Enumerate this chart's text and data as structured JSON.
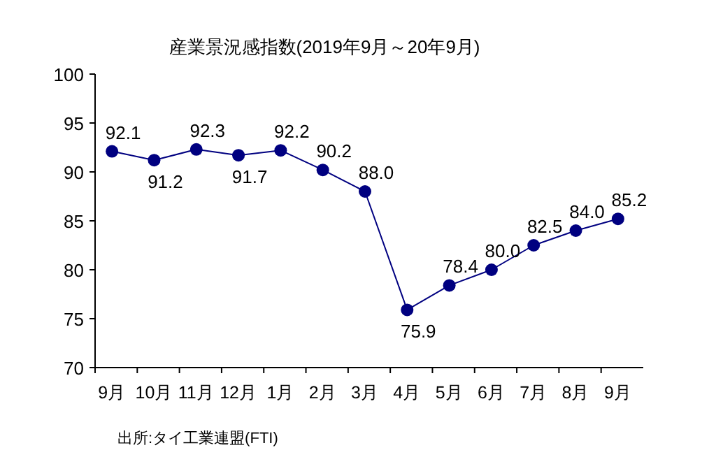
{
  "chart_data": {
    "type": "line",
    "title": "産業景況感指数(2019年9月～20年9月)",
    "categories": [
      "9月",
      "10月",
      "11月",
      "12月",
      "1月",
      "2月",
      "3月",
      "4月",
      "5月",
      "6月",
      "7月",
      "8月",
      "9月"
    ],
    "values": [
      92.1,
      91.2,
      92.3,
      91.7,
      92.2,
      90.2,
      88.0,
      75.9,
      78.4,
      80.0,
      82.5,
      84.0,
      85.2
    ],
    "value_labels": [
      "92.1",
      "91.2",
      "92.3",
      "91.7",
      "92.2",
      "90.2",
      "88.0",
      "75.9",
      "78.4",
      "80.0",
      "82.5",
      "84.0",
      "85.2"
    ],
    "color": "#000080",
    "marker": "circle",
    "line_style": "solid",
    "ylim": [
      70,
      100
    ],
    "yticks": [
      70,
      75,
      80,
      85,
      90,
      95,
      100
    ],
    "annotations": [
      "出所:タイ工業連盟(FTI)"
    ]
  }
}
